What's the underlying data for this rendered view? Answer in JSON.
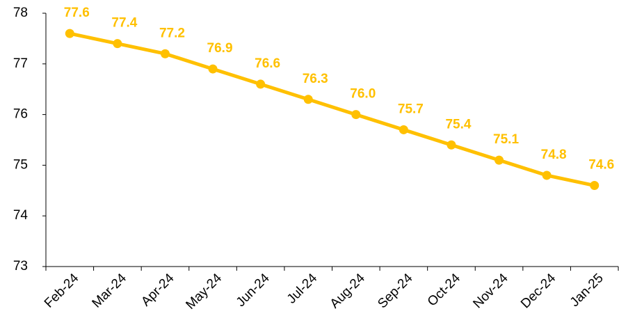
{
  "chart_data": {
    "type": "line",
    "categories": [
      "Feb-24",
      "Mar-24",
      "Apr-24",
      "May-24",
      "Jun-24",
      "Jul-24",
      "Aug-24",
      "Sep-24",
      "Oct-24",
      "Nov-24",
      "Dec-24",
      "Jan-25"
    ],
    "values": [
      77.6,
      77.4,
      77.2,
      76.9,
      76.6,
      76.3,
      76.0,
      75.7,
      75.4,
      75.1,
      74.8,
      74.6
    ],
    "value_labels": [
      "77.6",
      "77.4",
      "77.2",
      "76.9",
      "76.6",
      "76.3",
      "76.0",
      "75.7",
      "75.4",
      "75.1",
      "74.8",
      "74.6"
    ],
    "color": "#FFC000",
    "ylim": [
      73,
      78
    ],
    "yticks": [
      73,
      74,
      75,
      76,
      77,
      78
    ],
    "grid": false
  }
}
